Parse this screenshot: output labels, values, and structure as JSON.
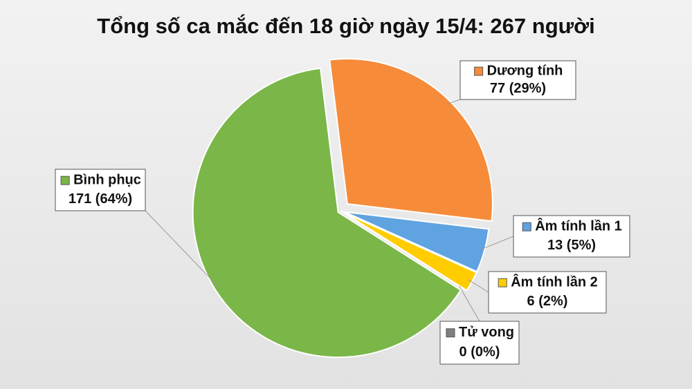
{
  "chart_data": {
    "type": "pie",
    "title": "Tổng số ca mắc đến 18 giờ ngày 15/4: 267 người",
    "categories": [
      "Dương tính",
      "Âm tính lần 1",
      "Âm tính lần 2",
      "Tử vong",
      "Bình phục"
    ],
    "values": [
      77,
      13,
      6,
      0,
      171
    ],
    "value_labels": [
      "77 (29%)",
      "13 (5%)",
      "6 (2%)",
      "0 (0%)",
      "171 (64%)"
    ],
    "colors": [
      "#f68b3a",
      "#5fa3e0",
      "#ffcc00",
      "#7f7f7f",
      "#7ab648"
    ]
  }
}
